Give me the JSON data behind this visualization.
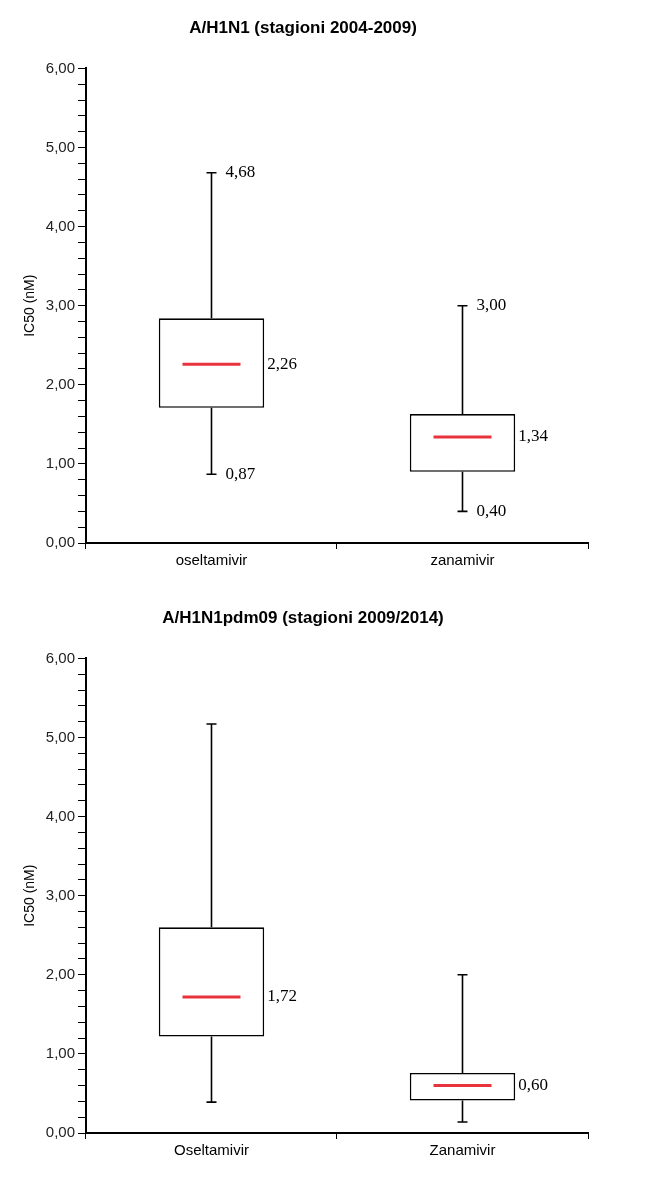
{
  "chart_data": [
    {
      "type": "box",
      "title": "A/H1N1 (stagioni 2004-2009)",
      "ylabel": "IC50 (nM)",
      "categories": [
        "oseltamivir",
        "zanamivir"
      ],
      "boxes": [
        {
          "low": 0.87,
          "q1": 1.71,
          "median": 2.26,
          "q3": 2.84,
          "high": 4.68
        },
        {
          "low": 0.4,
          "q1": 0.9,
          "median": 1.34,
          "q3": 1.63,
          "high": 3.0
        }
      ],
      "ylim": [
        0,
        6
      ],
      "yticks": [
        {
          "value": 0,
          "label": "0,00"
        },
        {
          "value": 0.2,
          "label": null
        },
        {
          "value": 0.4,
          "label": null
        },
        {
          "value": 0.6,
          "label": null
        },
        {
          "value": 0.8,
          "label": null
        },
        {
          "value": 1,
          "label": "1,00"
        },
        {
          "value": 1.2,
          "label": null
        },
        {
          "value": 1.4,
          "label": null
        },
        {
          "value": 1.6,
          "label": null
        },
        {
          "value": 1.8,
          "label": null
        },
        {
          "value": 2,
          "label": "2,00"
        },
        {
          "value": 2.2,
          "label": null
        },
        {
          "value": 2.4,
          "label": null
        },
        {
          "value": 2.6,
          "label": null
        },
        {
          "value": 2.8,
          "label": null
        },
        {
          "value": 3,
          "label": "3,00"
        },
        {
          "value": 3.2,
          "label": null
        },
        {
          "value": 3.4,
          "label": null
        },
        {
          "value": 3.6,
          "label": null
        },
        {
          "value": 3.8,
          "label": null
        },
        {
          "value": 4,
          "label": "4,00"
        },
        {
          "value": 4.2,
          "label": null
        },
        {
          "value": 4.4,
          "label": null
        },
        {
          "value": 4.6,
          "label": null
        },
        {
          "value": 4.8,
          "label": null
        },
        {
          "value": 5,
          "label": "5,00"
        },
        {
          "value": 5.2,
          "label": null
        },
        {
          "value": 5.4,
          "label": null
        },
        {
          "value": 5.6,
          "label": null
        },
        {
          "value": 5.8,
          "label": null
        },
        {
          "value": 6,
          "label": "6,00"
        }
      ],
      "annotations": [
        {
          "text": "4,68",
          "x": "oseltamivir",
          "y": 4.68
        },
        "2,26",
        {
          "text": "0,87",
          "x": "oseltamivir",
          "y": 0.87
        },
        {
          "text": "3,00",
          "x": "zanamivir",
          "y": 3.0
        },
        "1,34",
        {
          "text": "0,40",
          "x": "zanamivir",
          "y": 0.4
        }
      ],
      "grid": false,
      "legend": false
    },
    {
      "type": "box",
      "title": "A/H1N1pdm09 (stagioni 2009/2014)",
      "ylabel": "IC50 (nM)",
      "categories": [
        "Oseltamivir",
        "Zanamivir"
      ],
      "boxes": [
        {
          "low": 0.39,
          "q1": 1.22,
          "median": 1.72,
          "q3": 2.6,
          "high": 5.17
        },
        {
          "low": 0.14,
          "q1": 0.41,
          "median": 0.6,
          "q3": 0.76,
          "high": 2.0
        }
      ],
      "ylim": [
        0,
        6
      ],
      "yticks": [
        {
          "value": 0,
          "label": "0,00"
        },
        {
          "value": 0.2,
          "label": null
        },
        {
          "value": 0.4,
          "label": null
        },
        {
          "value": 0.6,
          "label": null
        },
        {
          "value": 0.8,
          "label": null
        },
        {
          "value": 1,
          "label": "1,00"
        },
        {
          "value": 1.2,
          "label": null
        },
        {
          "value": 1.4,
          "label": null
        },
        {
          "value": 1.6,
          "label": null
        },
        {
          "value": 1.8,
          "label": null
        },
        {
          "value": 2,
          "label": "2,00"
        },
        {
          "value": 2.2,
          "label": null
        },
        {
          "value": 2.4,
          "label": null
        },
        {
          "value": 2.6,
          "label": null
        },
        {
          "value": 2.8,
          "label": null
        },
        {
          "value": 3,
          "label": "3,00"
        },
        {
          "value": 3.2,
          "label": null
        },
        {
          "value": 3.4,
          "label": null
        },
        {
          "value": 3.6,
          "label": null
        },
        {
          "value": 3.8,
          "label": null
        },
        {
          "value": 4,
          "label": "4,00"
        },
        {
          "value": 4.2,
          "label": null
        },
        {
          "value": 4.4,
          "label": null
        },
        {
          "value": 4.6,
          "label": null
        },
        {
          "value": 4.8,
          "label": null
        },
        {
          "value": 5,
          "label": "5,00"
        },
        {
          "value": 5.2,
          "label": null
        },
        {
          "value": 5.4,
          "label": null
        },
        {
          "value": 5.6,
          "label": null
        },
        {
          "value": 5.8,
          "label": null
        },
        {
          "value": 6,
          "label": "6,00"
        }
      ],
      "annotations": [
        "1,72",
        "0,60"
      ],
      "grid": false,
      "legend": false
    }
  ]
}
